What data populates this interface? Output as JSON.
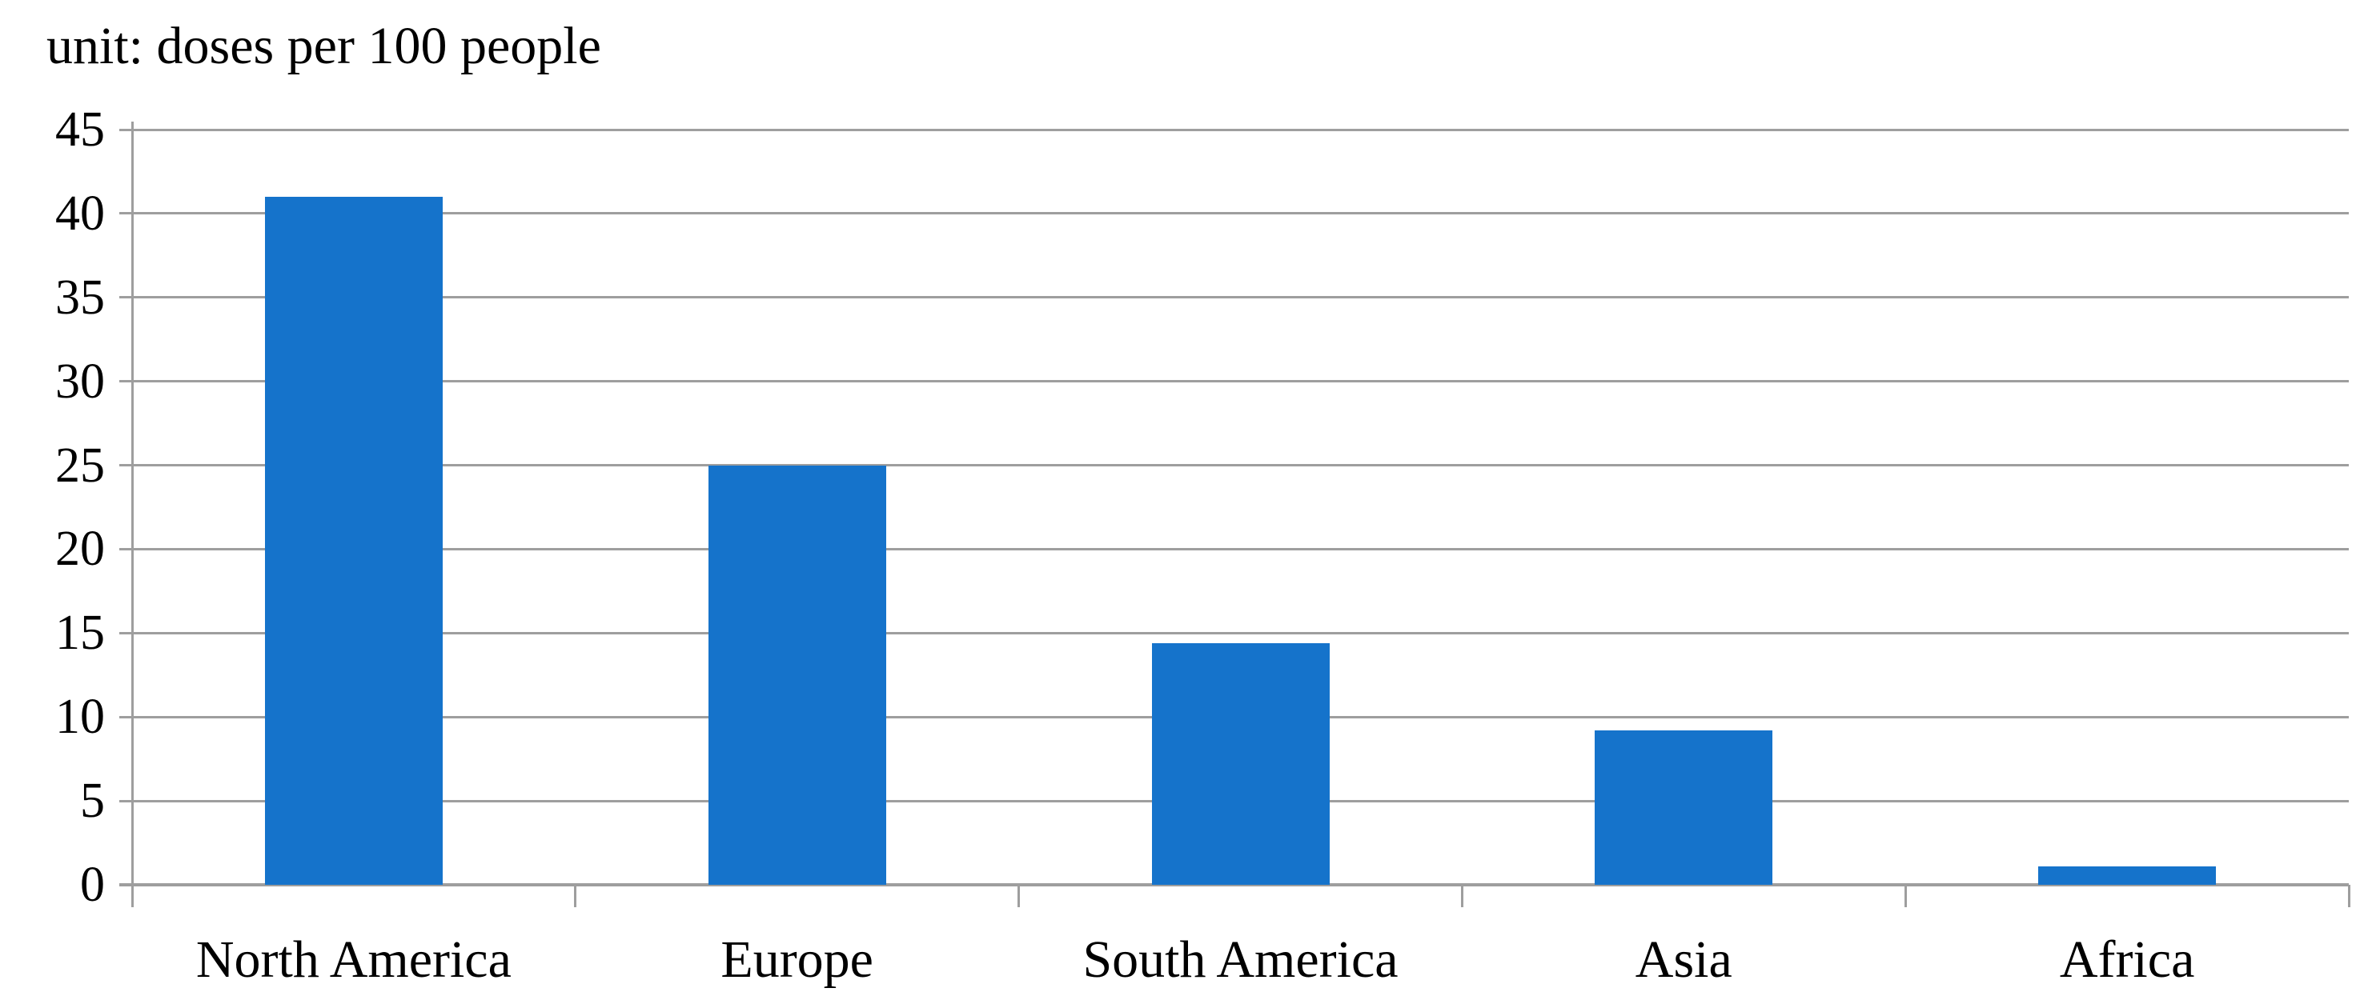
{
  "title": "unit: doses per 100 people",
  "colors": {
    "bar": "#1573CB",
    "gridline": "#9E9E9E",
    "axis": "#9E9E9E",
    "text": "#000000",
    "background": "#FFFFFF"
  },
  "chart_data": {
    "type": "bar",
    "title": "unit: doses per 100 people",
    "unit": "doses per 100 people",
    "categories": [
      "North America",
      "Europe",
      "South America",
      "Asia",
      "Africa"
    ],
    "values": [
      41,
      25,
      14.4,
      9.2,
      1.1
    ],
    "xlabel": "",
    "ylabel": "doses per 100 people",
    "ylim": [
      0,
      45
    ],
    "yticks": [
      45,
      40,
      35,
      30,
      25,
      20,
      15,
      10,
      5,
      0
    ],
    "grid": true,
    "legend_position": "none",
    "bar_color": "#1573CB"
  }
}
